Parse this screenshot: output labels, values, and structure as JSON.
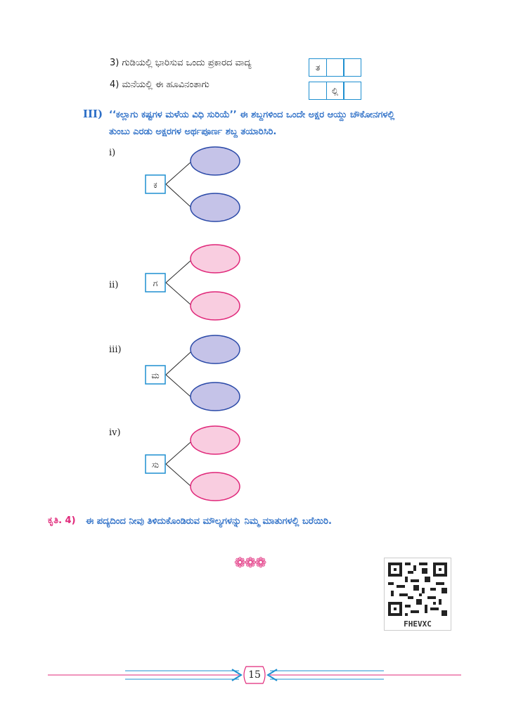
{
  "questions": {
    "q3": {
      "text": "3) ಗುಡಿಯಲ್ಲಿ ಭಾರಿಸುವ ಒಂದು ಪ್ರಕಾರದ ವಾದ್ಯ",
      "cells": [
        "ತ",
        "",
        ""
      ]
    },
    "q4": {
      "text": "4) ಮನೆಯಲ್ಲಿ ಈ ಹೂವಿನಂತಾಗು",
      "cells": [
        "",
        "ಲ್ಲಿ",
        ""
      ]
    }
  },
  "section3": {
    "number": "III)",
    "line1": "‘‘ಕಲ್ಲಾಗು ಕಷ್ಟಗಳ ಮಳೆಯ ವಿಧಿ ಸುರಿಯೆ’’ ಈ ಶಬ್ದಗಳಿಂದ ಒಂದೇ ಅಕ್ಷರ ಆಯ್ದು ಚೌಕೋನಗಳಲ್ಲಿ",
    "line2": "ತುಂಬು ಎರಡು ಅಕ್ಷರಗಳ ಅರ್ಥಪೂರ್ಣ ಶಬ್ದ ತಯಾರಿಸಿರಿ."
  },
  "diagrams": [
    {
      "label": "i)",
      "letter": "ಕ",
      "fill": "#c5c3e8",
      "stroke": "#2b4aa8"
    },
    {
      "label": "ii)",
      "letter": "ಗ",
      "fill": "#f9cde0",
      "stroke": "#e0287a"
    },
    {
      "label": "iii)",
      "letter": "ಮ",
      "fill": "#c5c3e8",
      "stroke": "#2b4aa8"
    },
    {
      "label": "iv)",
      "letter": "ಸು",
      "fill": "#f9cde0",
      "stroke": "#e0287a"
    }
  ],
  "krithi": {
    "label": "ಕೃತಿ. 4)",
    "text": "ಈ ಪದ್ಯದಿಂದ ನೀವು ತಿಳಿದುಕೊಂಡಿರುವ ಮೌಲ್ಯಗಳನ್ನು ನಿಮ್ಮ ಮಾತುಗಳಲ್ಲಿ ಬರೆಯಿರಿ."
  },
  "ornament": "❁❁❁",
  "qr_code": {
    "label": "FHEVXC"
  },
  "page_number": "15",
  "colors": {
    "blue": "#2d6fc7",
    "pink": "#e0287a",
    "cyan": "#1f8fd0"
  }
}
